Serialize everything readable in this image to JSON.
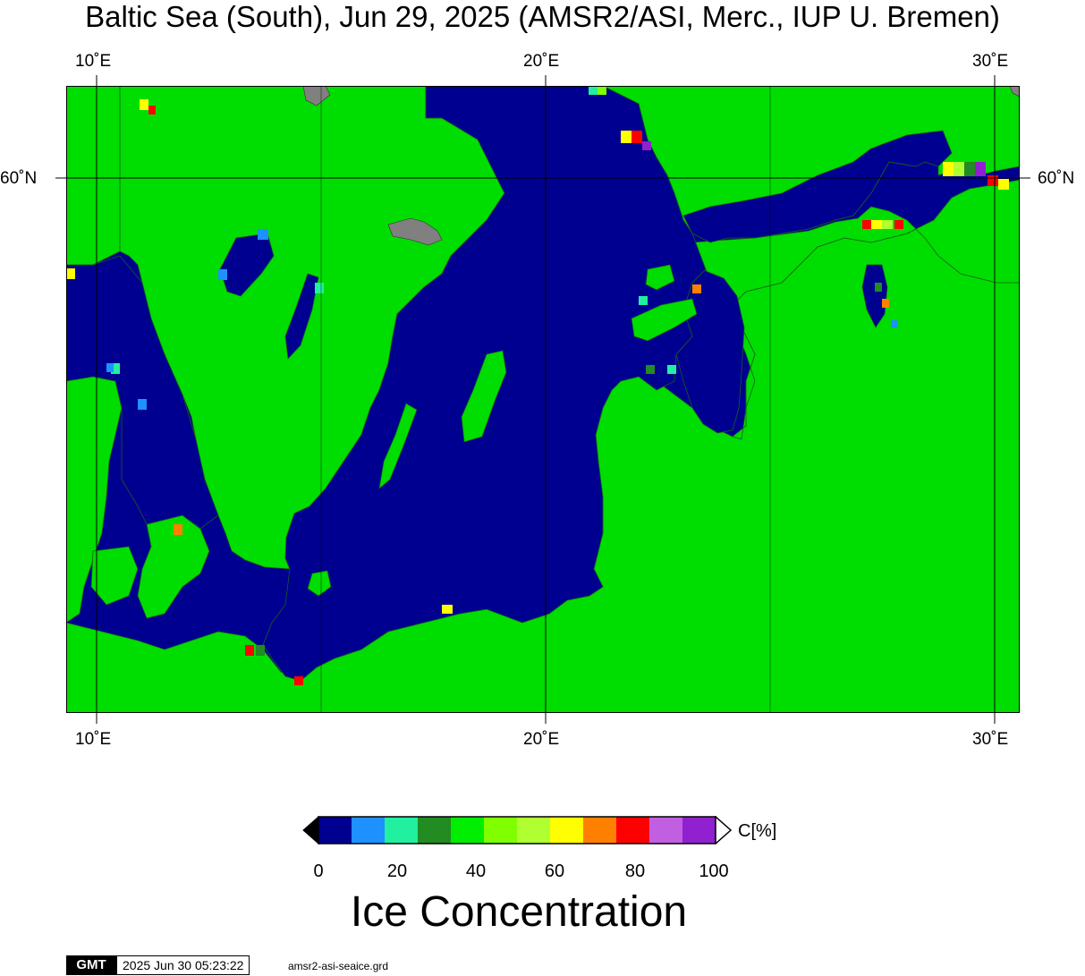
{
  "title": "Baltic Sea (South), Jun 29, 2025 (AMSR2/ASI, Merc., IUP U. Bremen)",
  "map": {
    "lon_ticks": [
      "10˚E",
      "20˚E",
      "30˚E"
    ],
    "lat_ticks": [
      "60˚N"
    ],
    "colors": {
      "land": "#00dd00",
      "water": "#000090",
      "coast": "#1a5a1a",
      "no_data": "#808080"
    }
  },
  "colorbar": {
    "unit_label": "C[%]",
    "tick_labels": [
      "0",
      "20",
      "40",
      "60",
      "80",
      "100"
    ],
    "under_color": "#000000",
    "over_color": "#ffffff",
    "colors": [
      "#000090",
      "#1e90ff",
      "#20f0a0",
      "#228b22",
      "#00ee00",
      "#7fff00",
      "#b0ff30",
      "#ffff00",
      "#ff8000",
      "#ff0000",
      "#c060e0",
      "#9020d0"
    ]
  },
  "caption": "Ice Concentration",
  "footer": {
    "logo_text": "GMT",
    "timestamp": "2025 Jun 30 05:23:22",
    "source_file": "amsr2-asi-seaice.grd"
  }
}
